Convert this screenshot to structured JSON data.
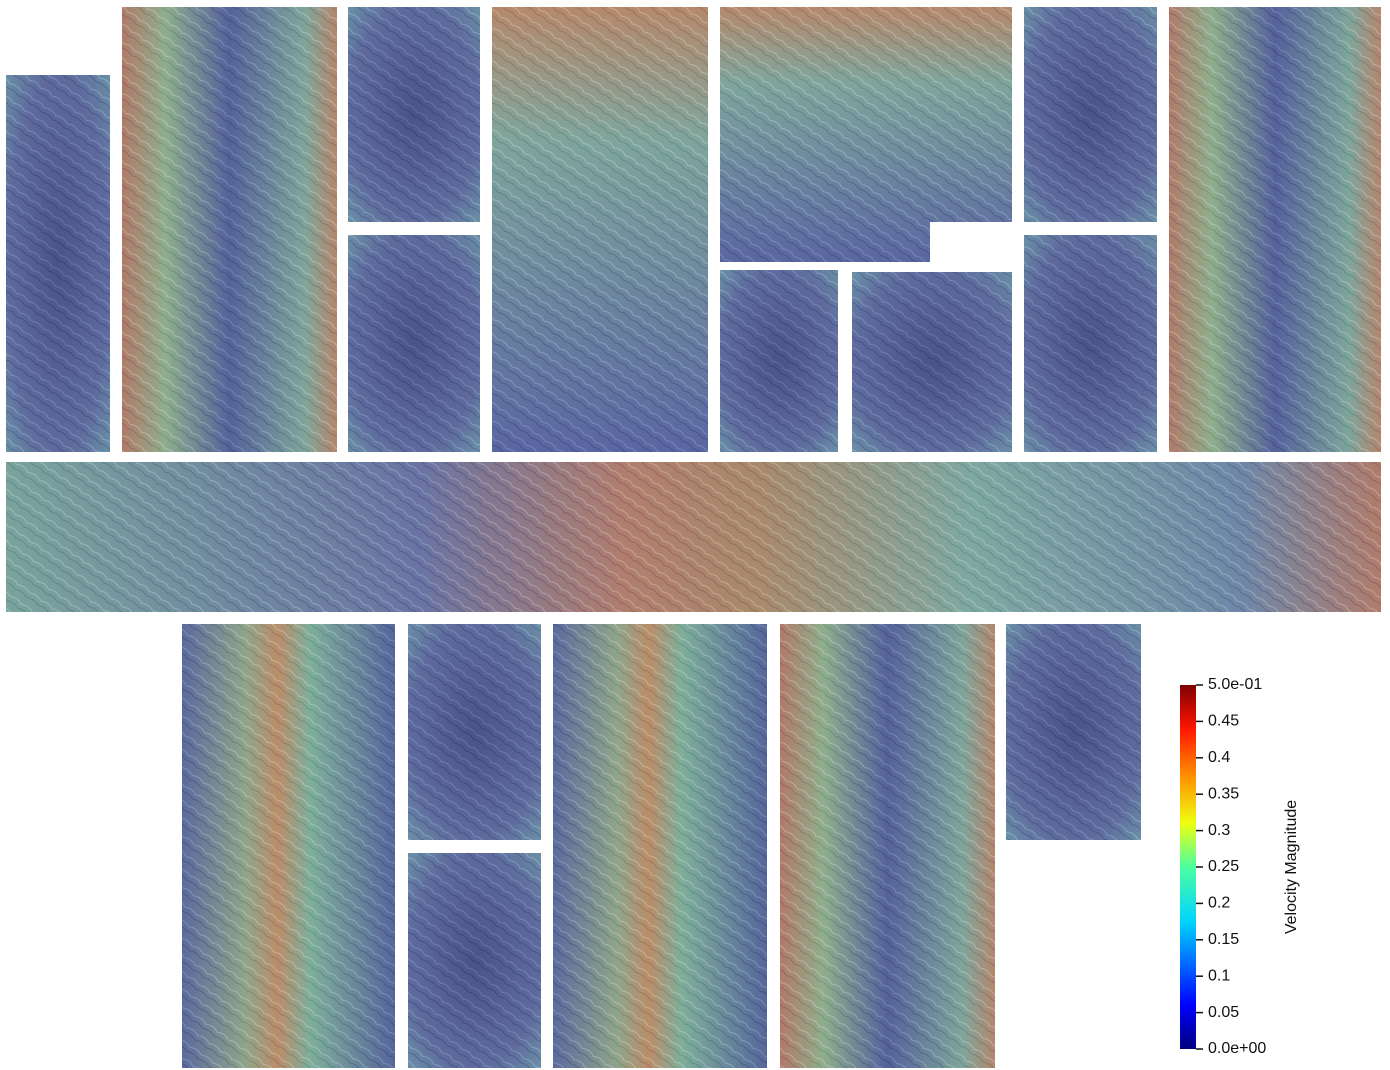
{
  "colorbar": {
    "title": "Velocity Magnitude",
    "range": [
      0,
      0.5
    ],
    "ticks": [
      {
        "value": 0.5,
        "label": "5.0e-01"
      },
      0.45,
      0.4,
      0.35,
      0.3,
      0.25,
      0.2,
      0.15,
      0.1,
      0.05,
      {
        "value": 0,
        "label": "0.0e+00"
      }
    ]
  }
}
